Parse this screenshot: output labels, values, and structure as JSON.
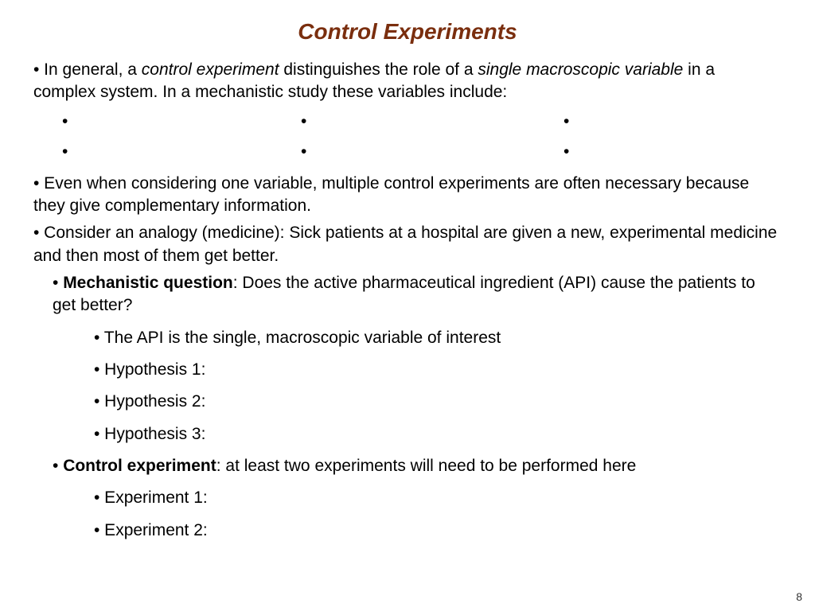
{
  "title": "Control Experiments",
  "title_color": "#7a2e0e",
  "background_color": "#ffffff",
  "text_color": "#000000",
  "page_number": "8",
  "p1": {
    "pre": "• In general, a ",
    "em1": "control experiment",
    "mid": " distinguishes the role of a ",
    "em2": "single macroscopic variable",
    "post": " in a complex system. In a mechanistic study these variables include:"
  },
  "grid": {
    "r1c1": "•",
    "r1c2": "•",
    "r1c3": "•",
    "r2c1": "•",
    "r2c2": "•",
    "r2c3": "•"
  },
  "p2": "• Even when considering one variable, multiple control experiments are often necessary because they give complementary information.",
  "p3": "• Consider an analogy (medicine): Sick patients at a hospital are given a new, experimental medicine and then most of them get better.",
  "mq": {
    "bullet": "• ",
    "bold": "Mechanistic question",
    "rest": ": Does the active pharmaceutical ingredient (API) cause the patients to get better?"
  },
  "mq_sub1": "• The API is the single, macroscopic variable of interest",
  "mq_sub2": "• Hypothesis 1:",
  "mq_sub3": "• Hypothesis 2:",
  "mq_sub4": "• Hypothesis 3:",
  "ce": {
    "bullet": "• ",
    "bold": "Control experiment",
    "rest": ": at least two experiments will need to be performed here"
  },
  "ce_sub1": "• Experiment 1:",
  "ce_sub2": "• Experiment 2:"
}
